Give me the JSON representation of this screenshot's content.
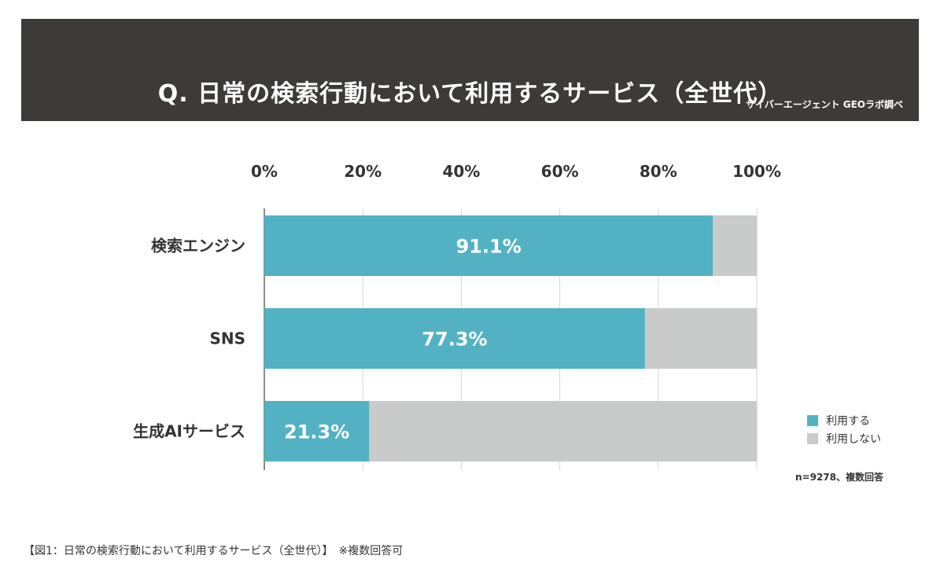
{
  "header": {
    "title": "Q. 日常の検索行動において利用するサービス（全世代）",
    "source": "サイバーエージェント GEOラボ調べ"
  },
  "chart_data": {
    "type": "bar",
    "orientation": "horizontal",
    "stacked": true,
    "categories": [
      "検索エンジン",
      "SNS",
      "生成AIサービス"
    ],
    "series": [
      {
        "name": "利用する",
        "values": [
          91.1,
          77.3,
          21.3
        ],
        "color": "#52b2c3"
      },
      {
        "name": "利用しない",
        "values": [
          8.9,
          22.7,
          78.7
        ],
        "color": "#c9caca"
      }
    ],
    "value_labels": [
      "91.1%",
      "77.3%",
      "21.3%"
    ],
    "xlim": [
      0,
      100
    ],
    "x_ticks": [
      "0%",
      "20%",
      "40%",
      "60%",
      "80%",
      "100%"
    ],
    "grid": true,
    "legend_position": "right",
    "note": "n=9278、複数回答"
  },
  "caption": "【図1：日常の検索行動において利用するサービス（全世代）】　※複数回答可"
}
